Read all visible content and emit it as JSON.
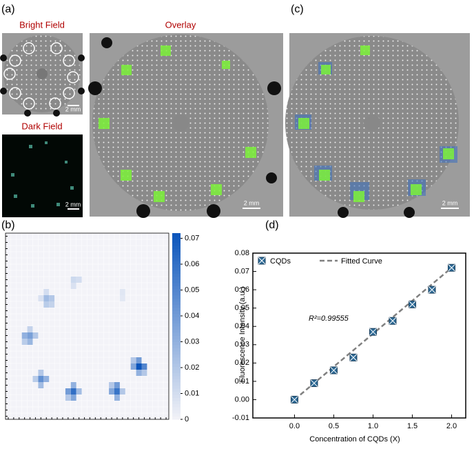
{
  "panels": [
    "(a)",
    "(b)",
    "(c)",
    "(d)"
  ],
  "image_labels": {
    "bright_field": "Bright Field",
    "dark_field": "Dark Field",
    "overlay": "Overlay"
  },
  "scale_bars": [
    "2 mm",
    "2 mm",
    "2 mm",
    "2 mm"
  ],
  "chart_data": [
    {
      "type": "heatmap",
      "colormap": [
        "#f3f3f8",
        "#0b55bb"
      ],
      "clim": [
        0,
        0.072
      ],
      "cticks": [
        0,
        0.01,
        0.02,
        0.03,
        0.04,
        0.05,
        0.06,
        0.07
      ],
      "cells": [
        {
          "row": 10,
          "col": 7,
          "value": 0.025
        },
        {
          "row": 10,
          "col": 8,
          "value": 0.02
        },
        {
          "row": 11,
          "col": 7,
          "value": 0.018
        },
        {
          "row": 11,
          "col": 8,
          "value": 0.015
        },
        {
          "row": 9,
          "col": 7,
          "value": 0.01
        },
        {
          "row": 10,
          "col": 6,
          "value": 0.008
        },
        {
          "row": 7,
          "col": 12,
          "value": 0.012
        },
        {
          "row": 7,
          "col": 13,
          "value": 0.01
        },
        {
          "row": 8,
          "col": 12,
          "value": 0.008
        },
        {
          "row": 9,
          "col": 21,
          "value": 0.006
        },
        {
          "row": 10,
          "col": 21,
          "value": 0.005
        },
        {
          "row": 16,
          "col": 4,
          "value": 0.038
        },
        {
          "row": 16,
          "col": 3,
          "value": 0.03
        },
        {
          "row": 17,
          "col": 4,
          "value": 0.028
        },
        {
          "row": 15,
          "col": 4,
          "value": 0.015
        },
        {
          "row": 16,
          "col": 5,
          "value": 0.02
        },
        {
          "row": 17,
          "col": 3,
          "value": 0.018
        },
        {
          "row": 21,
          "col": 24,
          "value": 0.072
        },
        {
          "row": 21,
          "col": 25,
          "value": 0.05
        },
        {
          "row": 20,
          "col": 24,
          "value": 0.04
        },
        {
          "row": 22,
          "col": 24,
          "value": 0.03
        },
        {
          "row": 21,
          "col": 23,
          "value": 0.035
        },
        {
          "row": 22,
          "col": 25,
          "value": 0.02
        },
        {
          "row": 20,
          "col": 23,
          "value": 0.02
        },
        {
          "row": 23,
          "col": 6,
          "value": 0.045
        },
        {
          "row": 23,
          "col": 7,
          "value": 0.03
        },
        {
          "row": 22,
          "col": 6,
          "value": 0.02
        },
        {
          "row": 24,
          "col": 6,
          "value": 0.025
        },
        {
          "row": 23,
          "col": 5,
          "value": 0.018
        },
        {
          "row": 25,
          "col": 12,
          "value": 0.06
        },
        {
          "row": 25,
          "col": 11,
          "value": 0.04
        },
        {
          "row": 26,
          "col": 12,
          "value": 0.035
        },
        {
          "row": 24,
          "col": 12,
          "value": 0.03
        },
        {
          "row": 25,
          "col": 13,
          "value": 0.025
        },
        {
          "row": 26,
          "col": 11,
          "value": 0.02
        },
        {
          "row": 25,
          "col": 20,
          "value": 0.058
        },
        {
          "row": 24,
          "col": 20,
          "value": 0.04
        },
        {
          "row": 25,
          "col": 19,
          "value": 0.035
        },
        {
          "row": 26,
          "col": 20,
          "value": 0.03
        },
        {
          "row": 25,
          "col": 21,
          "value": 0.02
        },
        {
          "row": 24,
          "col": 19,
          "value": 0.02
        }
      ]
    },
    {
      "type": "scatter",
      "x_label": "Concentration of CQDs (X)",
      "y_label": "Fluorescence Intensity (a.u.)",
      "annotation": "R²=0.99555",
      "xlim": [
        -0.53,
        2.18
      ],
      "ylim": [
        -0.01,
        0.08
      ],
      "xticks": [
        {
          "value": 0,
          "label": "0.0"
        },
        {
          "value": 0.5,
          "label": "0.5"
        },
        {
          "value": 1,
          "label": "1.0"
        },
        {
          "value": 1.5,
          "label": "1.5"
        },
        {
          "value": 2,
          "label": "2.0"
        }
      ],
      "yticks": [
        {
          "value": -0.01,
          "label": "-0.01"
        },
        {
          "value": 0,
          "label": "0.00"
        },
        {
          "value": 0.01,
          "label": "0.01"
        },
        {
          "value": 0.02,
          "label": "0.02"
        },
        {
          "value": 0.03,
          "label": "0.03"
        },
        {
          "value": 0.04,
          "label": "0.04"
        },
        {
          "value": 0.05,
          "label": "0.05"
        },
        {
          "value": 0.06,
          "label": "0.06"
        },
        {
          "value": 0.07,
          "label": "0.07"
        },
        {
          "value": 0.08,
          "label": "0.08"
        }
      ],
      "series": [
        {
          "name": "CQDs",
          "color": "#2d6a96",
          "x": [
            0,
            0.25,
            0.5,
            0.75,
            1,
            1.25,
            1.5,
            1.75,
            2
          ],
          "values": [
            0,
            0.009,
            0.016,
            0.023,
            0.037,
            0.043,
            0.052,
            0.06,
            0.072
          ]
        },
        {
          "name": "Fitted Curve",
          "color": "#808080",
          "x": [
            0,
            2
          ],
          "values": [
            0,
            0.072
          ]
        }
      ]
    }
  ]
}
